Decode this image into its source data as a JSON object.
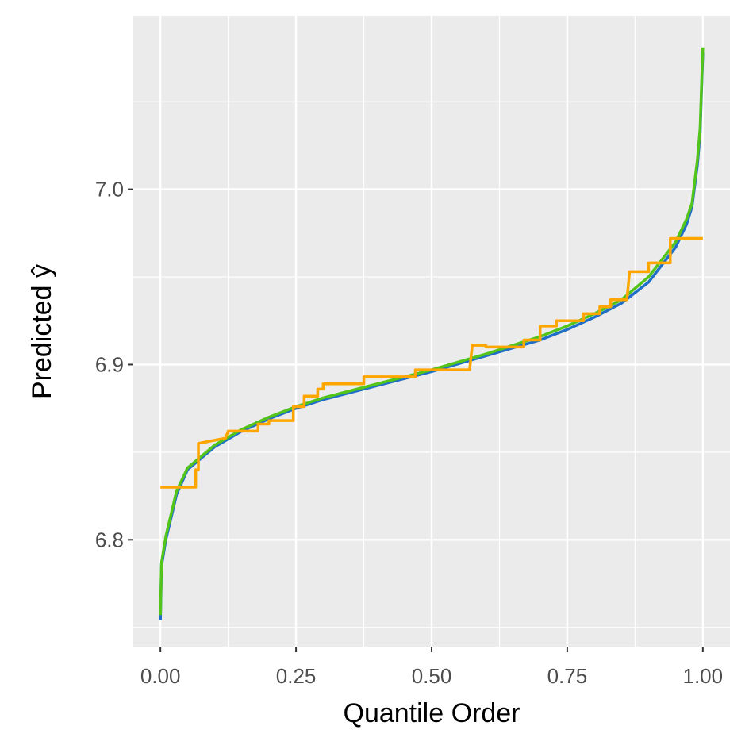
{
  "chart_data": {
    "type": "line",
    "x_label": "Quantile Order",
    "y_label": "Predicted ŷ",
    "xlim": [
      -0.05,
      1.05
    ],
    "ylim": [
      6.739,
      7.099
    ],
    "xticks": [
      {
        "value": 0,
        "label": "0.00"
      },
      0.25,
      {
        "value": 0.5,
        "label": "0.50"
      },
      0.75,
      {
        "value": 1,
        "label": "1.00"
      }
    ],
    "yticks": [
      {
        "value": 6.8,
        "label": "6.8"
      },
      6.9,
      {
        "value": 7,
        "label": "7.0"
      }
    ],
    "xminor": [
      0.125,
      0.375,
      0.625,
      0.875
    ],
    "yminor": [
      6.75,
      6.85,
      6.95,
      7.05
    ],
    "grid": true,
    "series": [
      {
        "color": "#1f6fc8",
        "x": [
          0,
          0.002,
          0.01,
          0.03,
          0.05,
          0.1,
          0.15,
          0.2,
          0.25,
          0.3,
          0.4,
          0.5,
          0.6,
          0.7,
          0.75,
          0.8,
          0.85,
          0.9,
          0.95,
          0.97,
          0.98,
          0.99,
          0.995,
          1
        ],
        "values": [
          6.754,
          6.785,
          6.8,
          6.826,
          6.84,
          6.853,
          6.862,
          6.869,
          6.875,
          6.88,
          6.888,
          6.896,
          6.905,
          6.914,
          6.92,
          6.927,
          6.935,
          6.947,
          6.967,
          6.98,
          6.99,
          7.014,
          7.032,
          7.078
        ]
      },
      {
        "color": "#52c41a",
        "x": [
          0,
          0.002,
          0.01,
          0.03,
          0.05,
          0.1,
          0.15,
          0.2,
          0.25,
          0.3,
          0.4,
          0.5,
          0.6,
          0.7,
          0.75,
          0.8,
          0.85,
          0.9,
          0.95,
          0.97,
          0.98,
          0.99,
          0.995,
          1
        ],
        "values": [
          6.757,
          6.787,
          6.802,
          6.828,
          6.841,
          6.854,
          6.863,
          6.87,
          6.876,
          6.881,
          6.889,
          6.897,
          6.906,
          6.916,
          6.922,
          6.929,
          6.937,
          6.95,
          6.97,
          6.983,
          6.992,
          7.017,
          7.035,
          7.081
        ]
      },
      {
        "color": "#ffa500",
        "x": [
          0,
          0.065,
          0.065,
          0.07,
          0.07,
          0.12,
          0.125,
          0.18,
          0.18,
          0.2,
          0.2,
          0.245,
          0.245,
          0.265,
          0.265,
          0.29,
          0.29,
          0.3,
          0.3,
          0.375,
          0.375,
          0.47,
          0.47,
          0.57,
          0.575,
          0.6,
          0.6,
          0.67,
          0.67,
          0.7,
          0.7,
          0.73,
          0.73,
          0.78,
          0.78,
          0.81,
          0.81,
          0.83,
          0.83,
          0.86,
          0.865,
          0.9,
          0.9,
          0.94,
          0.94,
          1
        ],
        "values": [
          6.83,
          6.83,
          6.84,
          6.84,
          6.855,
          6.858,
          6.862,
          6.862,
          6.866,
          6.866,
          6.868,
          6.868,
          6.876,
          6.876,
          6.882,
          6.882,
          6.886,
          6.886,
          6.889,
          6.889,
          6.893,
          6.893,
          6.897,
          6.897,
          6.911,
          6.911,
          6.91,
          6.91,
          6.914,
          6.914,
          6.922,
          6.922,
          6.925,
          6.925,
          6.929,
          6.929,
          6.933,
          6.933,
          6.937,
          6.937,
          6.953,
          6.953,
          6.958,
          6.958,
          6.972,
          6.972
        ]
      }
    ]
  }
}
